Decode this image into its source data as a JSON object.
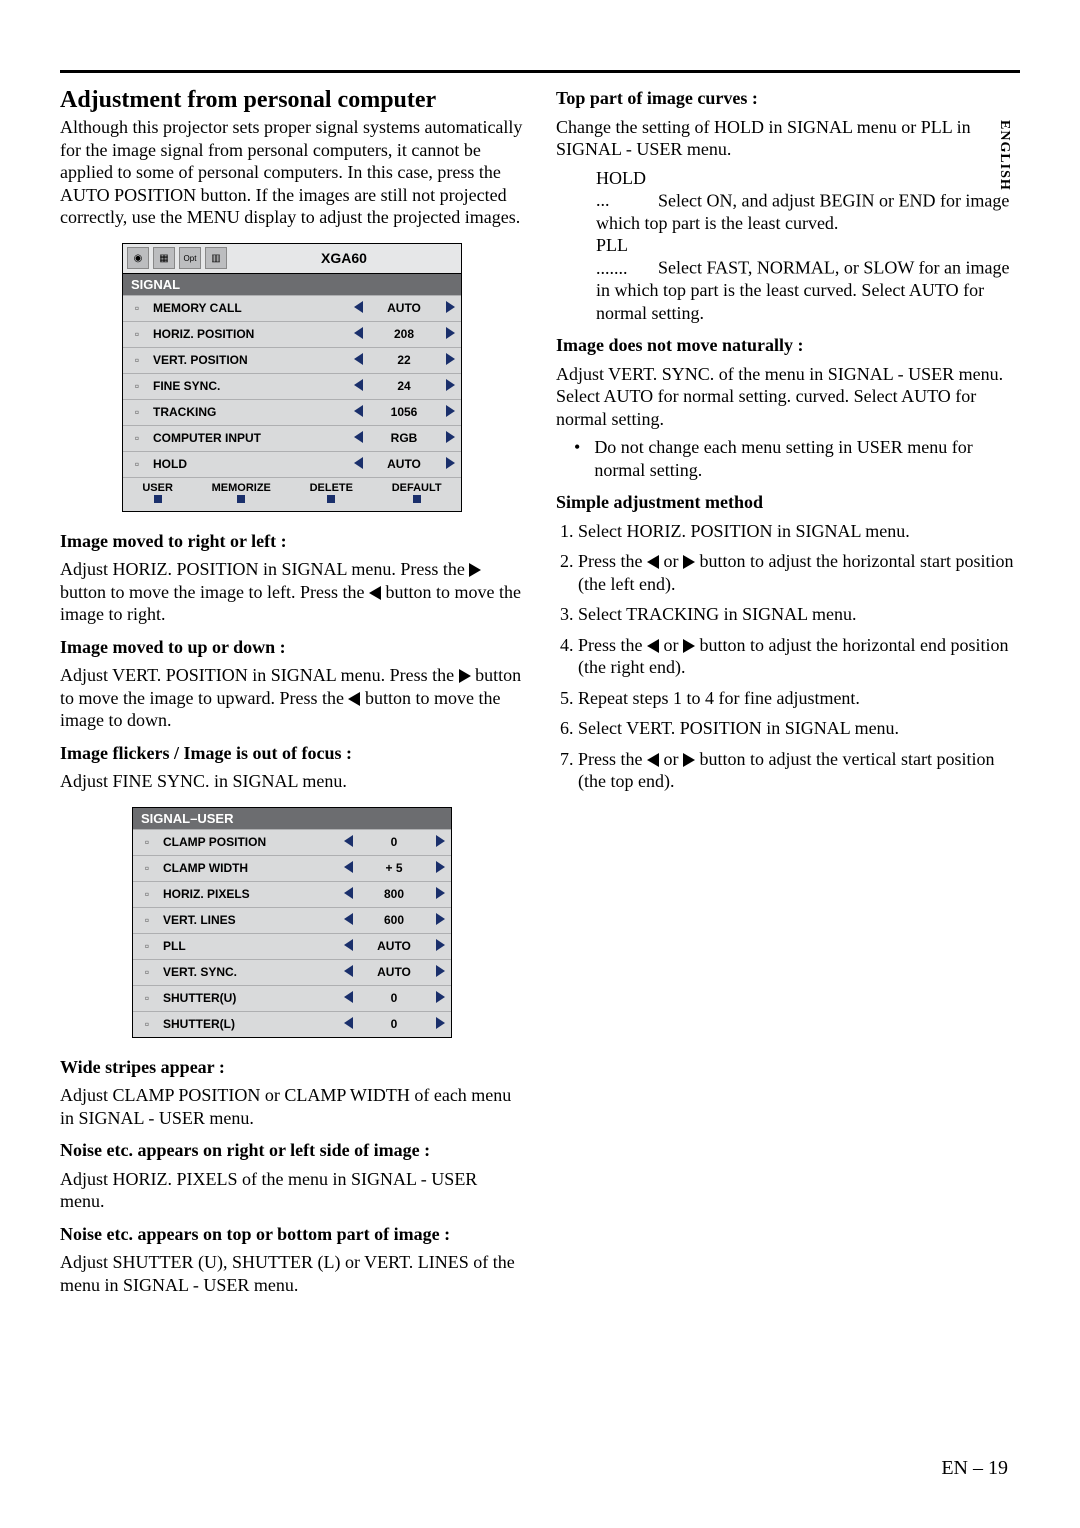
{
  "lang_tab": "ENGLISH",
  "page_number": "EN – 19",
  "left": {
    "title": "Adjustment from personal computer",
    "intro": "Although this projector sets proper signal systems automatically for the image signal from personal computers, it cannot be applied to some of personal computers.  In this case, press the AUTO POSITION button.  If the images are still not projected correctly, use the MENU display to adjust the projected images.",
    "h_moved_rl": "Image moved to right or left :",
    "p_moved_rl_a": "Adjust HORIZ. POSITION in SIGNAL menu.  Press the ",
    "p_moved_rl_b": " button to move the image to left.  Press the ",
    "p_moved_rl_c": " button to move the image to right.",
    "h_moved_ud": "Image moved to up or down :",
    "p_moved_ud_a": "Adjust VERT. POSITION in SIGNAL menu.  Press the ",
    "p_moved_ud_b": " button to move the image to upward.  Press the ",
    "p_moved_ud_c": " button to move the image to down.",
    "h_flicker": "Image flickers / Image is out of focus :",
    "p_flicker": "Adjust FINE SYNC. in SIGNAL menu.",
    "h_stripes": "Wide stripes appear :",
    "p_stripes": "Adjust CLAMP POSITION or CLAMP WIDTH of each menu in SIGNAL - USER menu.",
    "h_noise_rl": "Noise etc. appears on right or left side of image :",
    "p_noise_rl": "Adjust HORIZ. PIXELS  of the menu in SIGNAL - USER menu.",
    "h_noise_tb": "Noise etc. appears on top or bottom part of image :",
    "p_noise_tb": "Adjust SHUTTER (U), SHUTTER (L) or VERT. LINES of the menu in SIGNAL - USER menu."
  },
  "right": {
    "h_top_curve": "Top part of image curves :",
    "p_top_curve": "Change the setting of HOLD in SIGNAL menu or PLL in SIGNAL - USER menu.",
    "hold_label": "HOLD ...",
    "hold_text": "Select ON, and adjust BEGIN or END for image which top part is the least curved.",
    "pll_label": "PLL .......",
    "pll_text": "Select FAST, NORMAL, or SLOW for an image in which top part is the least curved.  Select AUTO for normal setting.",
    "h_not_move": "Image does not move naturally :",
    "p_not_move": "Adjust VERT. SYNC. of the menu in SIGNAL - USER menu.  Select AUTO for normal setting. curved.  Select AUTO for normal setting.",
    "bullet": "Do not change each menu setting in USER menu for normal setting.",
    "h_simple": "Simple adjustment method",
    "steps": [
      "Select HORIZ. POSITION in SIGNAL menu.",
      "Press the ◀ or ▶ button to adjust the horizontal start position (the left end).",
      "Select TRACKING in SIGNAL menu.",
      "Press the ◀ or ▶ button to adjust the horizontal end position (the right end).",
      "Repeat steps 1 to 4 for fine adjustment.",
      "Select VERT. POSITION in SIGNAL menu.",
      "Press the ◀ or ▶ button to adjust the vertical start position (the top end)."
    ]
  },
  "menu1": {
    "tab_title": "XGA60",
    "header": "SIGNAL",
    "rows": [
      {
        "label": "MEMORY CALL",
        "value": "AUTO"
      },
      {
        "label": "HORIZ. POSITION",
        "value": "208"
      },
      {
        "label": "VERT. POSITION",
        "value": "22"
      },
      {
        "label": "FINE SYNC.",
        "value": "24"
      },
      {
        "label": "TRACKING",
        "value": "1056"
      },
      {
        "label": "COMPUTER INPUT",
        "value": "RGB"
      },
      {
        "label": "HOLD",
        "value": "AUTO"
      }
    ],
    "footer": [
      "USER",
      "MEMORIZE",
      "DELETE",
      "DEFAULT"
    ]
  },
  "menu2": {
    "header": "SIGNAL–USER",
    "rows": [
      {
        "label": "CLAMP POSITION",
        "value": "0"
      },
      {
        "label": "CLAMP WIDTH",
        "value": "+ 5"
      },
      {
        "label": "HORIZ. PIXELS",
        "value": "800"
      },
      {
        "label": "VERT. LINES",
        "value": "600"
      },
      {
        "label": "PLL",
        "value": "AUTO"
      },
      {
        "label": "VERT. SYNC.",
        "value": "AUTO"
      },
      {
        "label": "SHUTTER(U)",
        "value": "0"
      },
      {
        "label": "SHUTTER(L)",
        "value": "0"
      }
    ]
  }
}
